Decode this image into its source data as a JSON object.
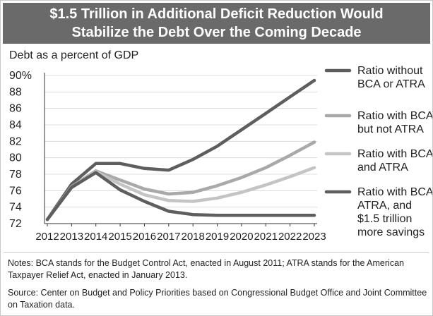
{
  "title_lines": [
    "$1.5 Trillion in Additional Deficit Reduction Would",
    "Stabilize the Debt Over the Coming Decade"
  ],
  "notes": "Notes: BCA stands for the Budget Control Act, enacted in August 2011; ATRA stands for the American Taxpayer Relief Act, enacted in January 2013.",
  "source": "Source: Center on Budget and Policy Priorities based on Congressional Budget Office and Joint Committee on Taxation data.",
  "chart_data": {
    "type": "line",
    "ylabel": "Debt as a percent of GDP",
    "xlabel": "",
    "x": [
      "2012",
      "2013",
      "2014",
      "2015",
      "2016",
      "2017",
      "2018",
      "2019",
      "2020",
      "2021",
      "2022",
      "2023"
    ],
    "ylim": [
      72,
      90
    ],
    "yticks": [
      72,
      74,
      76,
      78,
      80,
      82,
      84,
      86,
      88,
      90
    ],
    "ytick_labels": [
      "72",
      "74",
      "76",
      "78",
      "80",
      "82",
      "84",
      "86",
      "88",
      "90%"
    ],
    "grid": true,
    "legend_position": "right",
    "series": [
      {
        "name": "Ratio without BCA or ATRA",
        "legend_lines": [
          "Ratio without",
          "BCA or ATRA"
        ],
        "color": "#5e5e5e",
        "values": [
          72.5,
          76.8,
          79.3,
          79.3,
          78.7,
          78.5,
          79.8,
          81.4,
          83.4,
          85.4,
          87.4,
          89.4
        ]
      },
      {
        "name": "Ratio with BCA but not ATRA",
        "legend_lines": [
          "Ratio with BCA",
          "but not ATRA"
        ],
        "color": "#a9a9a9",
        "values": [
          72.5,
          76.5,
          78.4,
          77.3,
          76.2,
          75.6,
          75.8,
          76.6,
          77.6,
          78.8,
          80.3,
          81.9
        ]
      },
      {
        "name": "Ratio with BCA and ATRA",
        "legend_lines": [
          "Ratio with BCA",
          "and ATRA"
        ],
        "color": "#c4c4c4",
        "values": [
          72.5,
          76.4,
          78.3,
          76.8,
          75.5,
          74.8,
          74.7,
          75.1,
          75.8,
          76.7,
          77.7,
          78.8
        ]
      },
      {
        "name": "Ratio with BCA, ATRA, and $1.5 trillion more savings",
        "legend_lines": [
          "Ratio with BCA,",
          "ATRA, and",
          "$1.5 trillion",
          "more savings"
        ],
        "color": "#5e5e5e",
        "values": [
          72.5,
          76.4,
          78.2,
          76.1,
          74.7,
          73.5,
          73.1,
          73.0,
          73.0,
          73.0,
          73.0,
          73.0
        ]
      }
    ]
  }
}
